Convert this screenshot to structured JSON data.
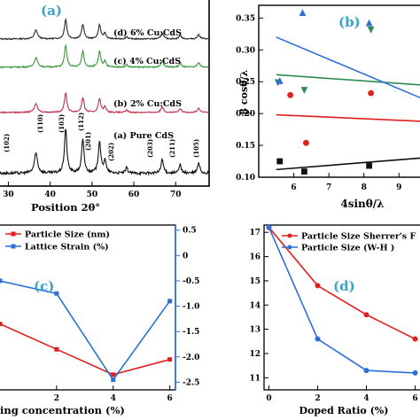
{
  "chart_data": [
    {
      "id": "a",
      "type": "line",
      "panel_label": "(a)",
      "xlabel": "Position 2θ°",
      "xticks": [
        30,
        40,
        50,
        60,
        70
      ],
      "xlim": [
        28,
        78
      ],
      "series": [
        {
          "name": "(d) 6% Cu:CdS",
          "color": "#2a2a2a"
        },
        {
          "name": "(c) 4% Cu:CdS",
          "color": "#3a9a3a"
        },
        {
          "name": "(b) 2% Cu:CdS",
          "color": "#c0304a"
        },
        {
          "name": "(a) Pure CdS",
          "color": "#111111"
        }
      ],
      "peaks": [
        {
          "label": "(102)",
          "x": 36.6
        },
        {
          "label": "(110)",
          "x": 43.7
        },
        {
          "label": "(103)",
          "x": 47.8
        },
        {
          "label": "(112)",
          "x": 51.8
        },
        {
          "label": "(201)",
          "x": 53.1
        },
        {
          "label": "(202)",
          "x": 58.3
        },
        {
          "label": "(203)",
          "x": 66.8
        },
        {
          "label": "(211)",
          "x": 71.1
        },
        {
          "label": "(105)",
          "x": 75.5
        }
      ]
    },
    {
      "id": "b",
      "type": "scatter",
      "panel_label": "(b)",
      "xlabel": "4sinθ/λ",
      "ylabel": "β cosθ/λ",
      "xlim": [
        5,
        9.6
      ],
      "ylim": [
        0.1,
        0.37
      ],
      "xticks": [
        6,
        7,
        8,
        9
      ],
      "yticks": [
        0.1,
        0.15,
        0.2,
        0.25,
        0.3,
        0.35
      ],
      "series": [
        {
          "color": "#111111",
          "marker": "square",
          "points": [
            [
              5.6,
              0.125
            ],
            [
              6.3,
              0.109
            ],
            [
              8.15,
              0.118
            ]
          ],
          "fit": [
            [
              5.5,
              0.112
            ],
            [
              9.6,
              0.13
            ]
          ]
        },
        {
          "color": "#e02020",
          "marker": "circle",
          "points": [
            [
              5.9,
              0.229
            ],
            [
              6.35,
              0.154
            ],
            [
              8.2,
              0.232
            ]
          ],
          "fit": [
            [
              5.5,
              0.198
            ],
            [
              9.6,
              0.188
            ]
          ]
        },
        {
          "color": "#2e8b57",
          "marker": "triangle-down",
          "points": [
            [
              5.55,
              0.249
            ],
            [
              6.3,
              0.237
            ],
            [
              8.2,
              0.332
            ]
          ],
          "fit": [
            [
              5.5,
              0.261
            ],
            [
              9.6,
              0.245
            ]
          ]
        },
        {
          "color": "#2d6fd8",
          "marker": "triangle-up",
          "points": [
            [
              5.6,
              0.251
            ],
            [
              6.25,
              0.358
            ],
            [
              8.15,
              0.342
            ]
          ],
          "fit": [
            [
              5.5,
              0.32
            ],
            [
              9.6,
              0.225
            ]
          ]
        }
      ]
    },
    {
      "id": "c",
      "type": "line",
      "panel_label": "(c)",
      "xlabel": "ing concentration (%)",
      "xlim": [
        0,
        6.2
      ],
      "xticks": [
        2,
        4,
        6
      ],
      "y2lim": [
        -2.65,
        0.6
      ],
      "y2ticks": [
        0.5,
        0,
        -0.5,
        -1.0,
        -1.5,
        -2.0,
        -2.5
      ],
      "y2tick_labels": [
        "0.5",
        "0",
        "-0.5",
        "-1.0",
        "-1.5",
        "-2.0",
        "-2.5"
      ],
      "legend_position": "top-left",
      "series": [
        {
          "name": "Particle Size (nm)",
          "color": "#e02020",
          "points": [
            [
              0,
              -1.35
            ],
            [
              2,
              -1.85
            ],
            [
              4,
              -2.35
            ],
            [
              6,
              -2.05
            ]
          ]
        },
        {
          "name": "Lattice Strain (%)",
          "color": "#2d6fd8",
          "points": [
            [
              0,
              -0.5
            ],
            [
              2,
              -0.75
            ],
            [
              4,
              -2.45
            ],
            [
              6,
              -0.9
            ]
          ]
        }
      ]
    },
    {
      "id": "d",
      "type": "line",
      "panel_label": "(d)",
      "xlabel": "Doped Ratio (%)",
      "xlim": [
        -0.2,
        6.2
      ],
      "ylim": [
        10.5,
        17.3
      ],
      "xticks": [
        0,
        2,
        4,
        6
      ],
      "yticks": [
        11,
        12,
        13,
        14,
        15,
        16,
        17
      ],
      "legend_position": "top-right",
      "series": [
        {
          "name": "Particle Size Sherrer's F",
          "color": "#e02020",
          "points": [
            [
              0,
              17.2
            ],
            [
              2,
              14.8
            ],
            [
              4,
              13.6
            ],
            [
              6,
              12.6
            ]
          ]
        },
        {
          "name": "Particle Size (W-H )",
          "color": "#2d6fd8",
          "points": [
            [
              0,
              17.2
            ],
            [
              2,
              12.6
            ],
            [
              4,
              11.3
            ],
            [
              6,
              11.2
            ]
          ]
        }
      ]
    }
  ]
}
